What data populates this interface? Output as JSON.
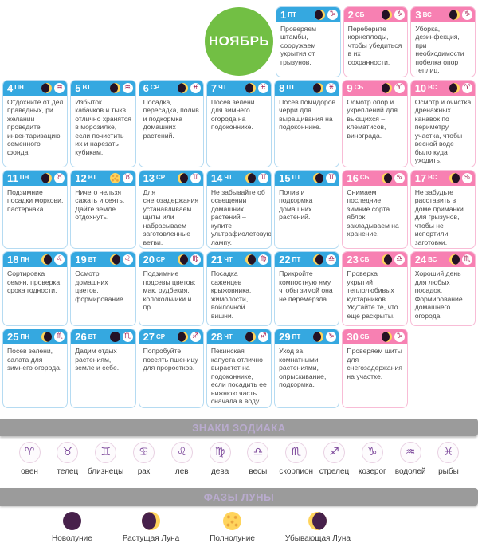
{
  "month": "НОЯБРЬ",
  "colors": {
    "weekday_header": "#35A8E0",
    "weekend_header": "#F780B2",
    "month_badge": "#72BF44",
    "zodiac_symbol_header": "#A21D50",
    "zodiac_symbol_legend": "#7E4A9C",
    "moon_dark": "#241225",
    "moon_yellow": "#FFD45C",
    "legend_bar": "#9B9B9B",
    "body_text": "#4A4A4A"
  },
  "days": [
    {
      "num": "1",
      "weekday": "ПТ",
      "weekend": false,
      "moon": "waxing",
      "zodiac": "capricorn",
      "symbol": "♑",
      "text": "Проверяем штамбы, сооружаем укрытия от грызунов."
    },
    {
      "num": "2",
      "weekday": "СБ",
      "weekend": true,
      "moon": "waxing",
      "zodiac": "capricorn",
      "symbol": "♑",
      "text": "Переберите корнеплоды, чтобы убедиться в их сохранности."
    },
    {
      "num": "3",
      "weekday": "ВС",
      "weekend": true,
      "moon": "waxing",
      "zodiac": "capricorn",
      "symbol": "♑",
      "text": "Уборка, дезинфекция, при необходимости побелка опор теплиц."
    },
    {
      "num": "4",
      "weekday": "ПН",
      "weekend": false,
      "moon": "waxing",
      "zodiac": "aquarius",
      "symbol": "♒",
      "text": "Отдохните от дел праведных, ри желании проведите инвентаризацию семенного фонда."
    },
    {
      "num": "5",
      "weekday": "ВТ",
      "weekend": false,
      "moon": "waxing",
      "zodiac": "aquarius",
      "symbol": "♒",
      "text": "Избыток кабачков и тыкв отлично хранятся в морозилке, если почистить их и нарезать кубикам."
    },
    {
      "num": "6",
      "weekday": "СР",
      "weekend": false,
      "moon": "waxing",
      "zodiac": "pisces",
      "symbol": "♓",
      "text": "Посадка, пересадка, полив и подкормка домашних растений."
    },
    {
      "num": "7",
      "weekday": "ЧТ",
      "weekend": false,
      "moon": "waxing",
      "zodiac": "pisces",
      "symbol": "♓",
      "text": "Посев зелени для зимнего огорода на подоконнике."
    },
    {
      "num": "8",
      "weekday": "ПТ",
      "weekend": false,
      "moon": "waxing",
      "zodiac": "pisces",
      "symbol": "♓",
      "text": "Посев помидоров черри для выращивания на подоконнике."
    },
    {
      "num": "9",
      "weekday": "СБ",
      "weekend": true,
      "moon": "waxing",
      "zodiac": "aries",
      "symbol": "♈",
      "text": "Осмотр опор и укреплений для вьющихся – клематисов, винограда."
    },
    {
      "num": "10",
      "weekday": "ВС",
      "weekend": true,
      "moon": "waxing",
      "zodiac": "aries",
      "symbol": "♈",
      "text": "Осмотр и очистка дренажных канавок по периметру участка, чтобы весной воде было куда уходить."
    },
    {
      "num": "11",
      "weekday": "ПН",
      "weekend": false,
      "moon": "waxing",
      "zodiac": "taurus",
      "symbol": "♉",
      "text": "Подзимние посадки моркови, пастернака."
    },
    {
      "num": "12",
      "weekday": "ВТ",
      "weekend": false,
      "moon": "full",
      "zodiac": "taurus",
      "symbol": "♉",
      "text": "Ничего нельзя сажать и сеять. Дайте земле отдохнуть."
    },
    {
      "num": "13",
      "weekday": "СР",
      "weekend": false,
      "moon": "waning",
      "zodiac": "gemini",
      "symbol": "♊",
      "text": "Для снегозадержания устанавливаем щиты или набрасываем заготовленные ветви."
    },
    {
      "num": "14",
      "weekday": "ЧТ",
      "weekend": false,
      "moon": "waning",
      "zodiac": "gemini",
      "symbol": "♊",
      "text": "Не забывайте об освещении домашних растений – купите ультрафиолетовую лампу."
    },
    {
      "num": "15",
      "weekday": "ПТ",
      "weekend": false,
      "moon": "waning",
      "zodiac": "gemini",
      "symbol": "♊",
      "text": "Полив и подкормка домашних растений."
    },
    {
      "num": "16",
      "weekday": "СБ",
      "weekend": true,
      "moon": "waning",
      "zodiac": "cancer",
      "symbol": "♋",
      "text": "Снимаем последние зимние сорта яблок, закладываем на хранение."
    },
    {
      "num": "17",
      "weekday": "ВС",
      "weekend": true,
      "moon": "waning",
      "zodiac": "cancer",
      "symbol": "♋",
      "text": "Не забудьте расставить в доме приманки для грызунов, чтобы не испортили заготовки."
    },
    {
      "num": "18",
      "weekday": "ПН",
      "weekend": false,
      "moon": "waning",
      "zodiac": "leo",
      "symbol": "♌",
      "text": "Сортировка семян, проверка срока годности."
    },
    {
      "num": "19",
      "weekday": "ВТ",
      "weekend": false,
      "moon": "waning",
      "zodiac": "leo",
      "symbol": "♌",
      "text": "Осмотр домашних цветов, формирование."
    },
    {
      "num": "20",
      "weekday": "СР",
      "weekend": false,
      "moon": "waning",
      "zodiac": "virgo",
      "symbol": "♍",
      "text": "Подзимние подсевы цветов: мак, рудбекия, колокольчики и пр."
    },
    {
      "num": "21",
      "weekday": "ЧТ",
      "weekend": false,
      "moon": "waning",
      "zodiac": "virgo",
      "symbol": "♍",
      "text": "Посадка саженцев крыжовника, жимолости, войлочной вишни."
    },
    {
      "num": "22",
      "weekday": "ПТ",
      "weekend": false,
      "moon": "waning",
      "zodiac": "libra",
      "symbol": "♎",
      "text": "Прикройте компостную яму, чтобы зимой она не перемерзла."
    },
    {
      "num": "23",
      "weekday": "СБ",
      "weekend": true,
      "moon": "waning",
      "zodiac": "libra",
      "symbol": "♎",
      "text": "Проверка укрытий теплолюбивых кустарников. Укутайте те, что еще раскрыты."
    },
    {
      "num": "24",
      "weekday": "ВС",
      "weekend": true,
      "moon": "waning",
      "zodiac": "scorpio",
      "symbol": "♏",
      "text": "Хороший день для любых посадок. Формирование домашнего огорода."
    },
    {
      "num": "25",
      "weekday": "ПН",
      "weekend": false,
      "moon": "waning",
      "zodiac": "scorpio",
      "symbol": "♏",
      "text": "Посев зелени, салата для зимнего огорода."
    },
    {
      "num": "26",
      "weekday": "ВТ",
      "weekend": false,
      "moon": "new",
      "zodiac": "scorpio",
      "symbol": "♏",
      "text": "Дадим отдых растениям, земле и себе."
    },
    {
      "num": "27",
      "weekday": "СР",
      "weekend": false,
      "moon": "waxing",
      "zodiac": "sagittarius",
      "symbol": "♐",
      "text": "Попробуйте посеять пшеницу для проростков."
    },
    {
      "num": "28",
      "weekday": "ЧТ",
      "weekend": false,
      "moon": "waxing",
      "zodiac": "sagittarius",
      "symbol": "♐",
      "text": "Пекинская капуста отлично вырастет на подоконнике, если посадить ее нижнюю часть сначала в воду."
    },
    {
      "num": "29",
      "weekday": "ПТ",
      "weekend": false,
      "moon": "waxing",
      "zodiac": "capricorn",
      "symbol": "♑",
      "text": "Уход за комнатными растениями, опрыскивание, подкормка."
    },
    {
      "num": "30",
      "weekday": "СБ",
      "weekend": true,
      "moon": "waxing",
      "zodiac": "capricorn",
      "symbol": "♑",
      "text": "Проверяем щиты для снегозадержания на участке."
    }
  ],
  "zodiac_legend": {
    "title": "ЗНАКИ ЗОДИАКА",
    "items": [
      {
        "name": "овен",
        "symbol": "♈"
      },
      {
        "name": "телец",
        "symbol": "♉"
      },
      {
        "name": "близнецы",
        "symbol": "♊"
      },
      {
        "name": "рак",
        "symbol": "♋"
      },
      {
        "name": "лев",
        "symbol": "♌"
      },
      {
        "name": "дева",
        "symbol": "♍"
      },
      {
        "name": "весы",
        "symbol": "♎"
      },
      {
        "name": "скорпион",
        "symbol": "♏"
      },
      {
        "name": "стрелец",
        "symbol": "♐"
      },
      {
        "name": "козерог",
        "symbol": "♑"
      },
      {
        "name": "водолей",
        "symbol": "♒"
      },
      {
        "name": "рыбы",
        "symbol": "♓"
      }
    ]
  },
  "moon_legend": {
    "title": "ФАЗЫ ЛУНЫ",
    "items": [
      {
        "name": "Новолуние",
        "phase": "new"
      },
      {
        "name": "Растущая Луна",
        "phase": "waxing"
      },
      {
        "name": "Полнолуние",
        "phase": "full"
      },
      {
        "name": "Убывающая Луна",
        "phase": "waning"
      }
    ]
  }
}
